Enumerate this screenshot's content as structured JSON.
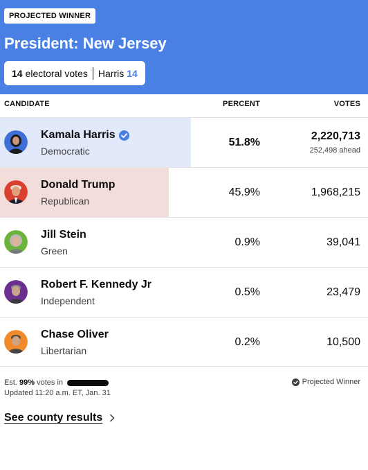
{
  "header": {
    "badge": "PROJECTED WINNER",
    "title": "President: New Jersey",
    "electoral_votes": "14",
    "electoral_label": "electoral votes",
    "winner_name": "Harris",
    "winner_votes": "14",
    "background_color": "#4a80e4"
  },
  "columns": {
    "candidate": "CANDIDATE",
    "percent": "PERCENT",
    "votes": "VOTES"
  },
  "candidates": [
    {
      "name": "Kamala Harris",
      "party": "Democratic",
      "percent": "51.8%",
      "votes": "2,220,713",
      "ahead": "252,498 ahead",
      "winner": true,
      "bar_share": 0.518,
      "bar_color": "#e1e9fb",
      "avatar_color": "#3d6fd6",
      "icon": "verified-check-icon"
    },
    {
      "name": "Donald Trump",
      "party": "Republican",
      "percent": "45.9%",
      "votes": "1,968,215",
      "bar_share": 0.459,
      "bar_color": "#f2ddda",
      "avatar_color": "#d8402f"
    },
    {
      "name": "Jill Stein",
      "party": "Green",
      "percent": "0.9%",
      "votes": "39,041",
      "avatar_color": "#6bb33a"
    },
    {
      "name": "Robert F. Kennedy Jr",
      "party": "Independent",
      "percent": "0.5%",
      "votes": "23,479",
      "avatar_color": "#6a2f8f"
    },
    {
      "name": "Chase Oliver",
      "party": "Libertarian",
      "percent": "0.2%",
      "votes": "10,500",
      "avatar_color": "#f08a2a"
    }
  ],
  "footer": {
    "est_prefix": "Est.",
    "est_pct": "99%",
    "est_suffix": "votes in",
    "updated": "Updated 11:20 a.m. ET, Jan. 31",
    "projected_label": "Projected Winner",
    "county_link": "See county results"
  }
}
